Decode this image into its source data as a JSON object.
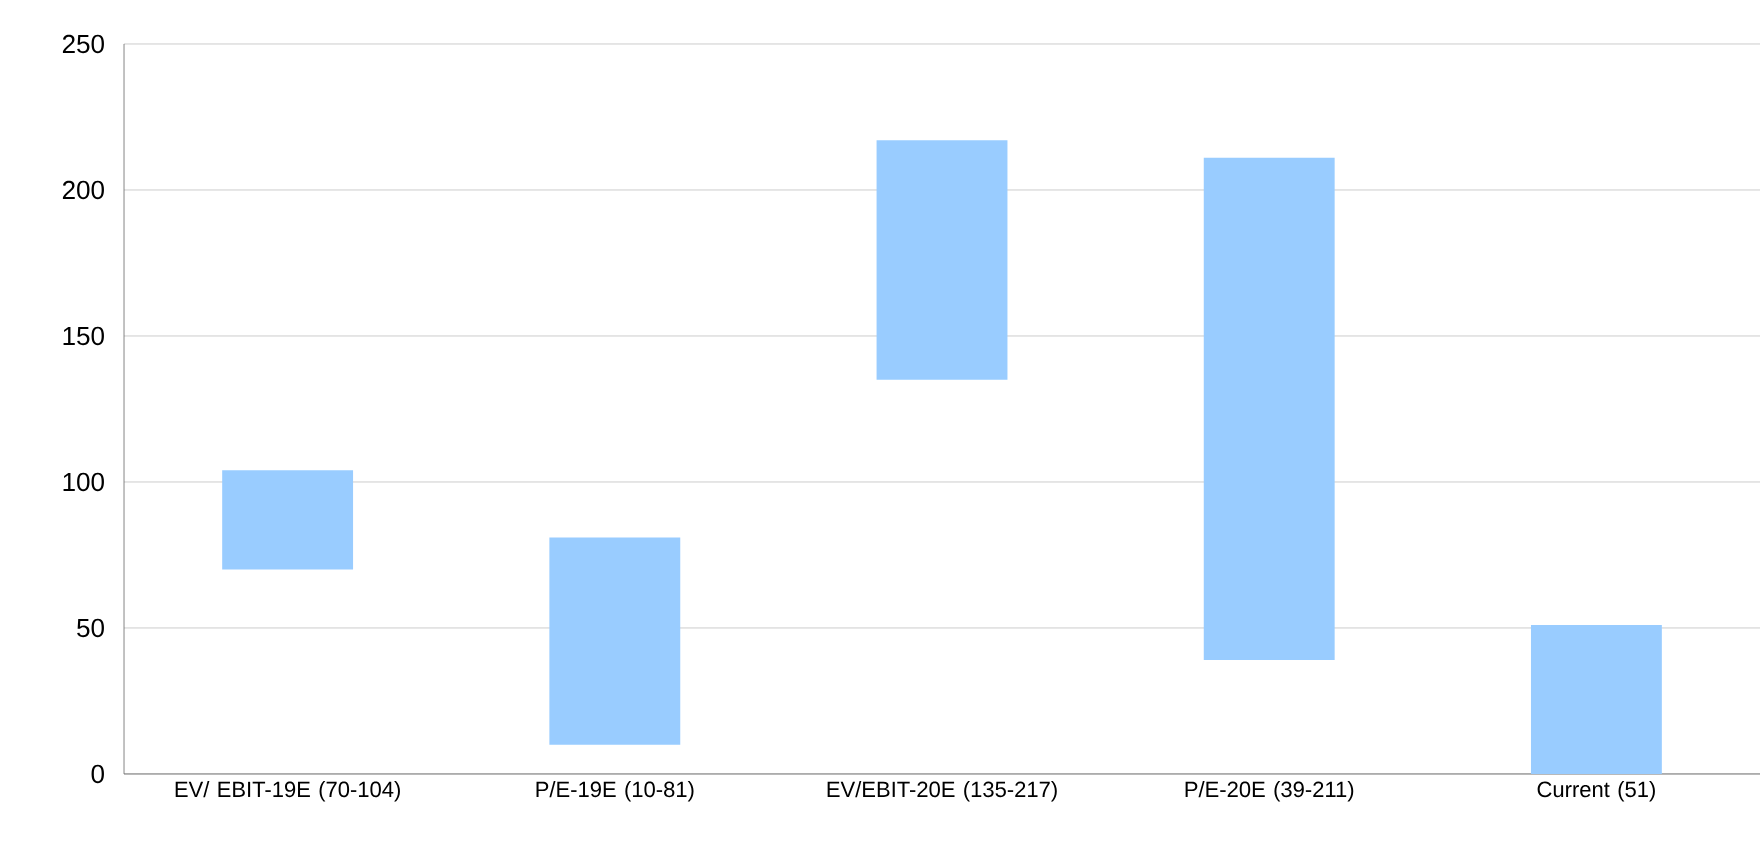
{
  "chart_data": {
    "type": "bar",
    "categories": [
      "EV/ EBIT-19E (70-104)",
      "P/E-19E (10-81)",
      "EV/EBIT-20E (135-217)",
      "P/E-20E (39-211)",
      "Current (51)"
    ],
    "base": [
      70,
      10,
      135,
      39,
      0
    ],
    "values": [
      34,
      71,
      82,
      172,
      51
    ],
    "color": "#99ccff",
    "ylim": [
      0,
      250
    ],
    "yticks": [
      0,
      50,
      100,
      150,
      200,
      250
    ],
    "grid": "y"
  }
}
